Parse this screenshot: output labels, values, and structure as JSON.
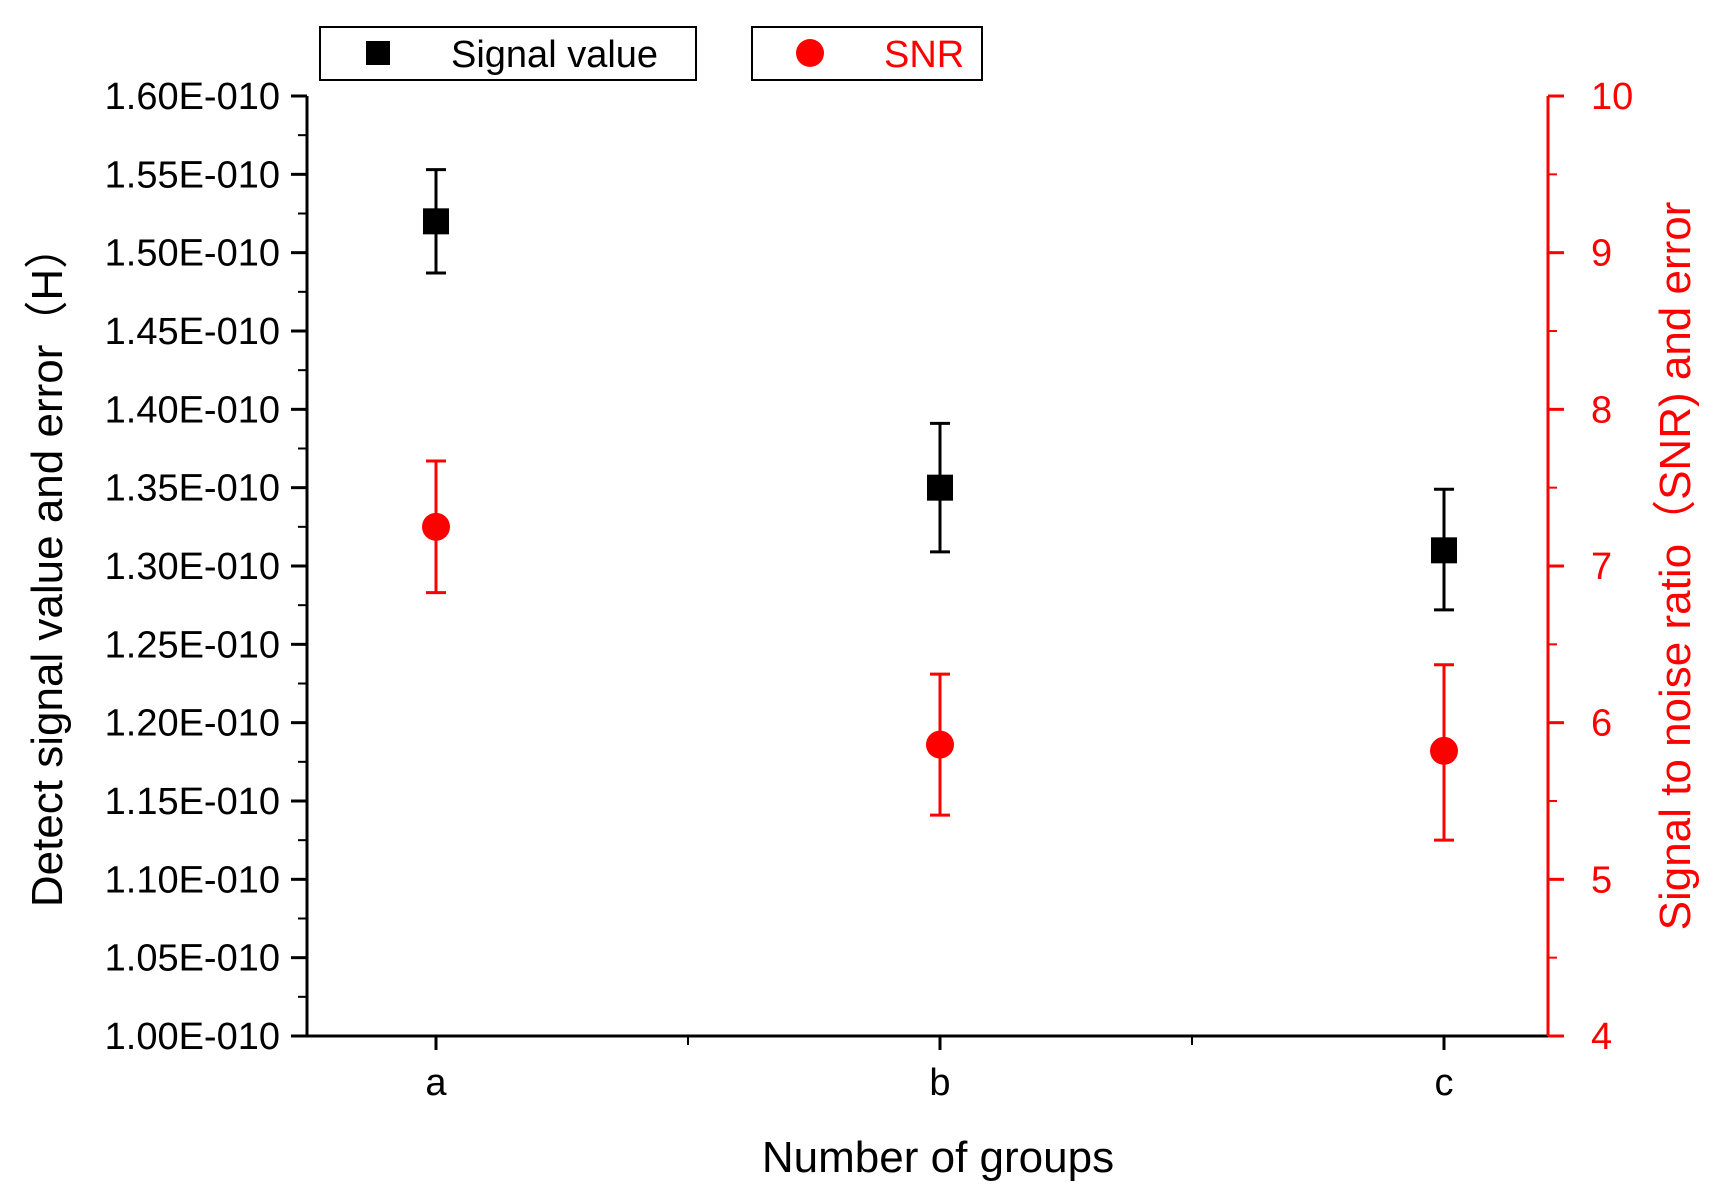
{
  "colors": {
    "signal": "#000000",
    "snr": "#ff0000",
    "axis_left": "#000000",
    "axis_right": "#ff0000",
    "background": "#ffffff"
  },
  "legend": {
    "signal_label": "Signal value",
    "snr_label": "SNR"
  },
  "chart_data": {
    "type": "scatter",
    "categories": [
      "a",
      "b",
      "c"
    ],
    "xlabel": "Number of groups",
    "ylabel": "Detect signal value and error（H）",
    "y2label": "Signal to noise ratio（SNR) and error",
    "ylim": [
      1e-10,
      1.6e-10
    ],
    "y2lim": [
      4,
      10
    ],
    "yticks": [
      "1.00E-010",
      "1.05E-010",
      "1.10E-010",
      "1.15E-010",
      "1.20E-010",
      "1.25E-010",
      "1.30E-010",
      "1.35E-010",
      "1.40E-010",
      "1.45E-010",
      "1.50E-010",
      "1.55E-010",
      "1.60E-010"
    ],
    "y2ticks": [
      "4",
      "5",
      "6",
      "7",
      "8",
      "9",
      "10"
    ],
    "series": [
      {
        "name": "Signal value",
        "axis": "left",
        "marker": "square",
        "values": [
          1.52e-10,
          1.35e-10,
          1.31e-10
        ],
        "error_low": [
          1.487e-10,
          1.309e-10,
          1.272e-10
        ],
        "error_high": [
          1.553e-10,
          1.391e-10,
          1.349e-10
        ]
      },
      {
        "name": "SNR",
        "axis": "right",
        "marker": "circle",
        "values": [
          7.25,
          5.86,
          5.82
        ],
        "error_low": [
          6.83,
          5.41,
          5.25
        ],
        "error_high": [
          7.67,
          6.31,
          6.37
        ]
      }
    ]
  }
}
